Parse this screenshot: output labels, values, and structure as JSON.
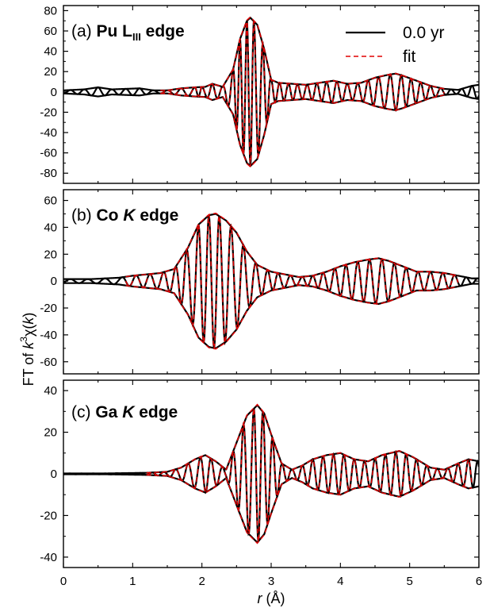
{
  "chart_data": [
    {
      "type": "line",
      "panel": "(a)",
      "title_prefix": "(a) ",
      "title_main": "Pu L",
      "title_sub": "III",
      "title_suffix": " edge",
      "ylim": [
        -90,
        85
      ],
      "yticks": [
        -80,
        -60,
        -40,
        -20,
        0,
        20,
        40,
        60,
        80
      ],
      "xlim": [
        0,
        6
      ],
      "grid": false,
      "legend": {
        "position": "top-right",
        "entries": [
          {
            "label": "0.0 yr",
            "style": "solid",
            "color": "#000000"
          },
          {
            "label": "fit",
            "style": "dashed",
            "color": "#e00000"
          }
        ]
      },
      "series": [
        {
          "name": "0.0 yr",
          "color": "#000000",
          "envelope": [
            [
              0,
              1.5
            ],
            [
              0.3,
              2.5
            ],
            [
              0.5,
              4.5
            ],
            [
              0.7,
              2.5
            ],
            [
              0.9,
              3
            ],
            [
              1.1,
              3.5
            ],
            [
              1.3,
              1.5
            ],
            [
              1.5,
              1.5
            ],
            [
              1.7,
              3.5
            ],
            [
              1.9,
              4.5
            ],
            [
              2.05,
              5
            ],
            [
              2.15,
              8
            ],
            [
              2.3,
              5
            ],
            [
              2.45,
              22
            ],
            [
              2.55,
              52
            ],
            [
              2.65,
              70
            ],
            [
              2.7,
              73
            ],
            [
              2.8,
              66
            ],
            [
              2.9,
              42
            ],
            [
              3.0,
              12
            ],
            [
              3.1,
              9
            ],
            [
              3.3,
              8
            ],
            [
              3.5,
              7
            ],
            [
              3.7,
              9
            ],
            [
              3.9,
              11
            ],
            [
              4.1,
              8
            ],
            [
              4.3,
              9
            ],
            [
              4.5,
              14
            ],
            [
              4.7,
              17
            ],
            [
              4.8,
              18
            ],
            [
              4.9,
              16
            ],
            [
              5.1,
              11
            ],
            [
              5.3,
              6
            ],
            [
              5.5,
              3
            ],
            [
              5.7,
              2
            ],
            [
              5.9,
              6
            ],
            [
              6,
              7
            ]
          ],
          "peak_r": [
            0.1,
            0.3,
            0.5,
            0.7,
            0.9,
            1.1,
            1.3,
            1.5,
            1.7,
            1.9,
            2.0,
            2.15,
            2.3,
            2.45,
            2.55,
            2.65,
            2.75,
            2.88,
            3.0,
            3.12,
            3.25,
            3.38,
            3.52,
            3.66,
            3.8,
            3.95,
            4.1,
            4.25,
            4.4,
            4.55,
            4.72,
            4.88,
            5.02,
            5.16,
            5.3,
            5.45,
            5.6,
            5.75,
            5.9
          ]
        },
        {
          "name": "fit",
          "color": "#e00000",
          "fit_range": [
            1.4,
            5.5
          ]
        }
      ]
    },
    {
      "type": "line",
      "panel": "(b)",
      "title_prefix": "(b) ",
      "title_main": "Co ",
      "title_italic": "K",
      "title_suffix": " edge",
      "ylim": [
        -69,
        68
      ],
      "yticks": [
        -60,
        -40,
        -20,
        0,
        20,
        40,
        60
      ],
      "xlim": [
        0,
        6
      ],
      "grid": false,
      "series": [
        {
          "name": "0.0 yr",
          "color": "#000000",
          "envelope": [
            [
              0,
              1.5
            ],
            [
              0.4,
              1.5
            ],
            [
              0.8,
              2.5
            ],
            [
              1.0,
              4
            ],
            [
              1.2,
              5
            ],
            [
              1.4,
              6
            ],
            [
              1.6,
              9
            ],
            [
              1.8,
              25
            ],
            [
              1.95,
              42
            ],
            [
              2.1,
              49
            ],
            [
              2.2,
              50
            ],
            [
              2.35,
              45
            ],
            [
              2.5,
              36
            ],
            [
              2.65,
              22
            ],
            [
              2.8,
              12
            ],
            [
              3.0,
              7
            ],
            [
              3.2,
              5
            ],
            [
              3.4,
              3
            ],
            [
              3.6,
              4
            ],
            [
              3.8,
              7
            ],
            [
              4.0,
              11
            ],
            [
              4.2,
              14
            ],
            [
              4.4,
              16
            ],
            [
              4.55,
              17
            ],
            [
              4.7,
              15
            ],
            [
              4.9,
              11
            ],
            [
              5.1,
              7
            ],
            [
              5.3,
              7
            ],
            [
              5.5,
              6
            ],
            [
              5.7,
              4
            ],
            [
              5.9,
              2
            ],
            [
              6,
              2
            ]
          ],
          "peak_r": [
            0.1,
            0.35,
            0.6,
            0.85,
            1.05,
            1.25,
            1.45,
            1.62,
            1.78,
            1.95,
            2.1,
            2.25,
            2.42,
            2.6,
            2.78,
            2.95,
            3.1,
            3.28,
            3.45,
            3.6,
            3.75,
            3.92,
            4.08,
            4.25,
            4.42,
            4.6,
            4.78,
            4.95,
            5.12,
            5.3,
            5.48,
            5.65,
            5.82,
            5.98
          ]
        },
        {
          "name": "fit",
          "color": "#e00000",
          "fit_range": [
            0.9,
            5.7
          ]
        }
      ]
    },
    {
      "type": "line",
      "panel": "(c)",
      "title_prefix": "(c) ",
      "title_main": "Ga ",
      "title_italic": "K",
      "title_suffix": " edge",
      "ylim": [
        -45,
        45
      ],
      "yticks": [
        -40,
        -20,
        0,
        20,
        40
      ],
      "xlim": [
        0,
        6
      ],
      "xticks": [
        0,
        1,
        2,
        3,
        4,
        5,
        6
      ],
      "xlabel_prefix": "r",
      "xlabel_suffix": " (Å)",
      "grid": false,
      "series": [
        {
          "name": "0.0 yr",
          "color": "#000000",
          "envelope": [
            [
              0,
              0.2
            ],
            [
              0.6,
              0.2
            ],
            [
              1.2,
              0.5
            ],
            [
              1.5,
              1
            ],
            [
              1.7,
              3
            ],
            [
              1.9,
              7
            ],
            [
              2.05,
              9
            ],
            [
              2.2,
              6
            ],
            [
              2.35,
              2
            ],
            [
              2.5,
              15
            ],
            [
              2.65,
              28
            ],
            [
              2.8,
              33
            ],
            [
              2.9,
              29
            ],
            [
              3.0,
              19
            ],
            [
              3.15,
              5
            ],
            [
              3.3,
              2
            ],
            [
              3.45,
              4
            ],
            [
              3.6,
              7
            ],
            [
              3.8,
              9
            ],
            [
              4.0,
              10
            ],
            [
              4.2,
              7
            ],
            [
              4.4,
              6
            ],
            [
              4.6,
              9
            ],
            [
              4.85,
              11
            ],
            [
              5.05,
              8
            ],
            [
              5.3,
              3
            ],
            [
              5.5,
              2
            ],
            [
              5.7,
              5
            ],
            [
              5.85,
              7
            ],
            [
              6,
              6
            ]
          ],
          "peak_r": [
            1.45,
            1.62,
            1.8,
            1.98,
            2.13,
            2.3,
            2.45,
            2.6,
            2.75,
            2.88,
            3.02,
            3.16,
            3.3,
            3.45,
            3.6,
            3.75,
            3.9,
            4.05,
            4.2,
            4.35,
            4.5,
            4.65,
            4.8,
            4.95,
            5.1,
            5.25,
            5.4,
            5.55,
            5.7,
            5.85,
            5.98
          ]
        },
        {
          "name": "fit",
          "color": "#e00000",
          "fit_range": [
            1.2,
            5.9
          ]
        }
      ]
    }
  ],
  "shared": {
    "ylabel_prefix": "FT of ",
    "ylabel_k": "k",
    "ylabel_exp": "3",
    "ylabel_chi": "χ(",
    "ylabel_k2": "k",
    "ylabel_close": ")"
  }
}
